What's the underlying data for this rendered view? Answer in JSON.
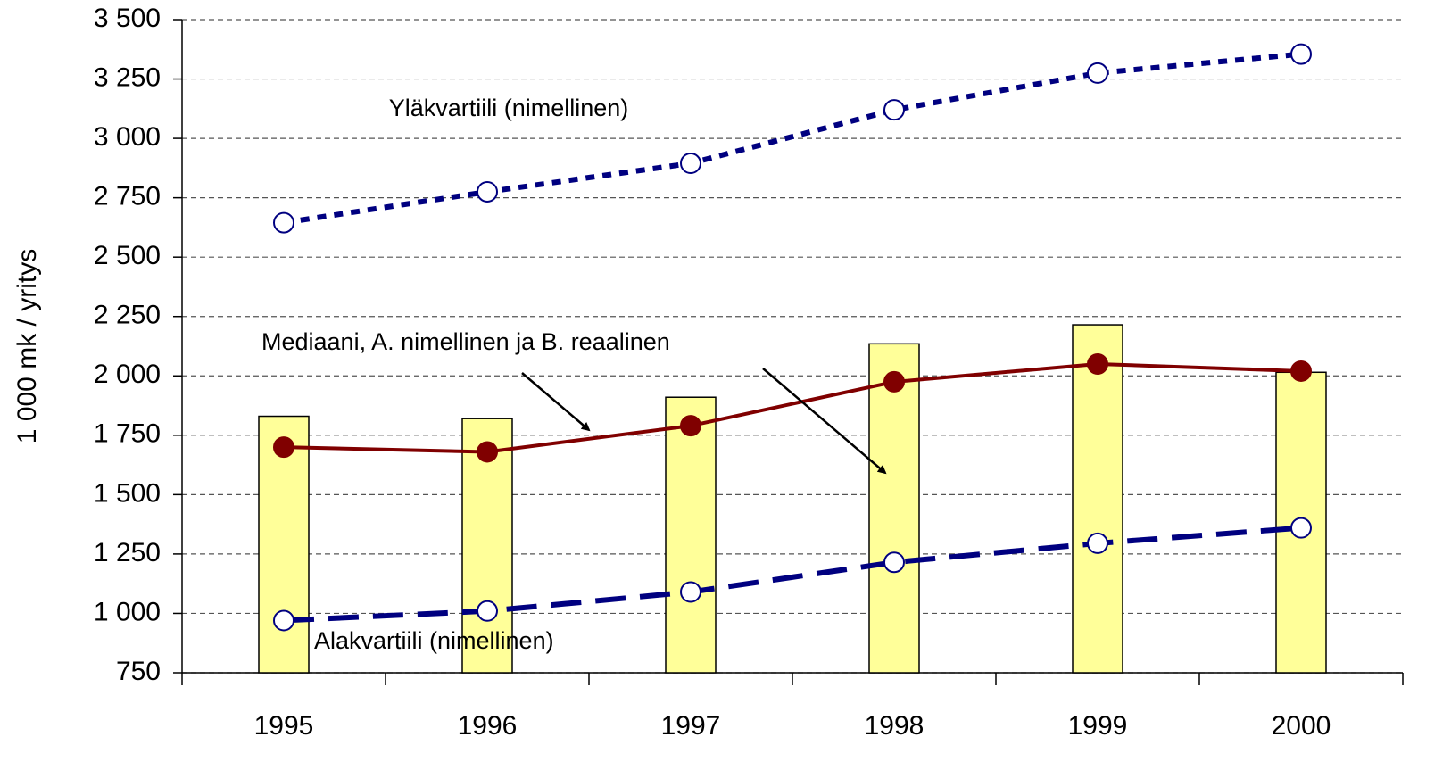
{
  "chart_data": {
    "type": "combo",
    "y_label": "1 000 mk / yritys",
    "categories": [
      "1995",
      "1996",
      "1997",
      "1998",
      "1999",
      "2000"
    ],
    "ylim": [
      750,
      3500
    ],
    "yticks": [
      750,
      {
        "value": 1000,
        "label": "1 000"
      },
      {
        "value": 1250,
        "label": "1 250"
      },
      {
        "value": 1500,
        "label": "1 500"
      },
      {
        "value": 1750,
        "label": "1 750"
      },
      {
        "value": 2000,
        "label": "2 000"
      },
      {
        "value": 2250,
        "label": "2 250"
      },
      {
        "value": 2500,
        "label": "2 500"
      },
      {
        "value": 2750,
        "label": "2 750"
      },
      {
        "value": 3000,
        "label": "3 000"
      },
      {
        "value": 3250,
        "label": "3 250"
      },
      {
        "value": 3500,
        "label": "3 500"
      }
    ],
    "grid": true,
    "series": [
      {
        "type": "bar",
        "color": "#ffff99",
        "values": [
          1830,
          1820,
          1910,
          2135,
          2215,
          2015
        ]
      },
      {
        "type": "line",
        "style": "solid",
        "marker": "filled",
        "color": "#800000",
        "values": [
          1700,
          1680,
          1790,
          1975,
          2050,
          2020
        ]
      },
      {
        "type": "line",
        "style": "dotted",
        "marker": "open",
        "color": "#000080",
        "values": [
          2645,
          2775,
          2895,
          3120,
          3275,
          3355
        ]
      },
      {
        "type": "line",
        "style": "dashed",
        "marker": "open",
        "color": "#000080",
        "values": [
          970,
          1010,
          1090,
          1215,
          1295,
          1360
        ]
      }
    ],
    "annotations": [
      "Yläkvartiili (nimellinen)",
      "Mediaani, A. nimellinen ja B. reaalinen",
      "Alakvartiili (nimellinen)"
    ]
  }
}
